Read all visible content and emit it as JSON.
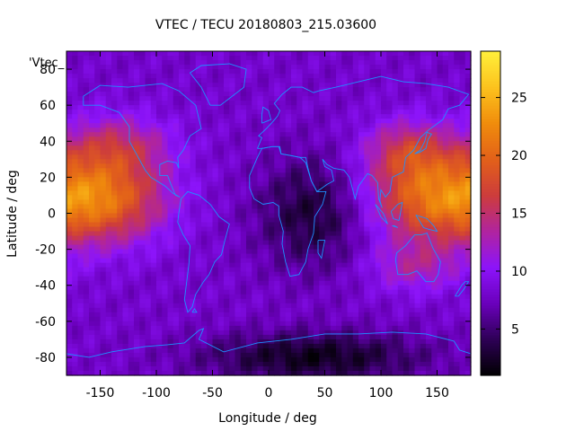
{
  "chart_data": {
    "type": "heatmap",
    "title": "VTEC / TECU 20180803_215.03600",
    "xlabel": "Longitude / deg",
    "ylabel": "Latitude / deg",
    "xlim": [
      -180,
      180
    ],
    "ylim": [
      -90,
      90
    ],
    "xticks": [
      -150,
      -100,
      -50,
      0,
      50,
      100,
      150
    ],
    "yticks": [
      -80,
      -60,
      -40,
      -20,
      0,
      20,
      40,
      60,
      80
    ],
    "colorbar": {
      "range": [
        1,
        29
      ],
      "ticks": [
        5,
        10,
        15,
        20,
        25
      ],
      "palette": [
        "#000000",
        "#2d0055",
        "#6a00bb",
        "#8c14fa",
        "#b0249f",
        "#cd3c3c",
        "#e2601a",
        "#f08c0c",
        "#fcc21d",
        "#ffef3a"
      ]
    },
    "legend_label": "'Vtec_",
    "overlay": "coastlines",
    "overlay_color": "#1e90ff",
    "features": [
      {
        "lon": -150,
        "lat": 8,
        "peak": 20.5,
        "sx": 40,
        "sy": 17
      },
      {
        "lon": 140,
        "lat": 8,
        "peak": 18.5,
        "sx": 38,
        "sy": 17
      },
      {
        "lon": 125,
        "lat": 35,
        "peak": 15,
        "sx": 28,
        "sy": 12
      },
      {
        "lon": -135,
        "lat": 38,
        "peak": 14,
        "sx": 34,
        "sy": 12
      },
      {
        "lon": 130,
        "lat": -30,
        "peak": 12.5,
        "sx": 30,
        "sy": 10
      }
    ],
    "background_tec": 8,
    "dark_regions": [
      {
        "lon": 40,
        "lat": 0,
        "depth": 5,
        "sx": 35,
        "sy": 22
      },
      {
        "lon": 40,
        "lat": -80,
        "depth": 6,
        "sx": 70,
        "sy": 10
      }
    ]
  }
}
